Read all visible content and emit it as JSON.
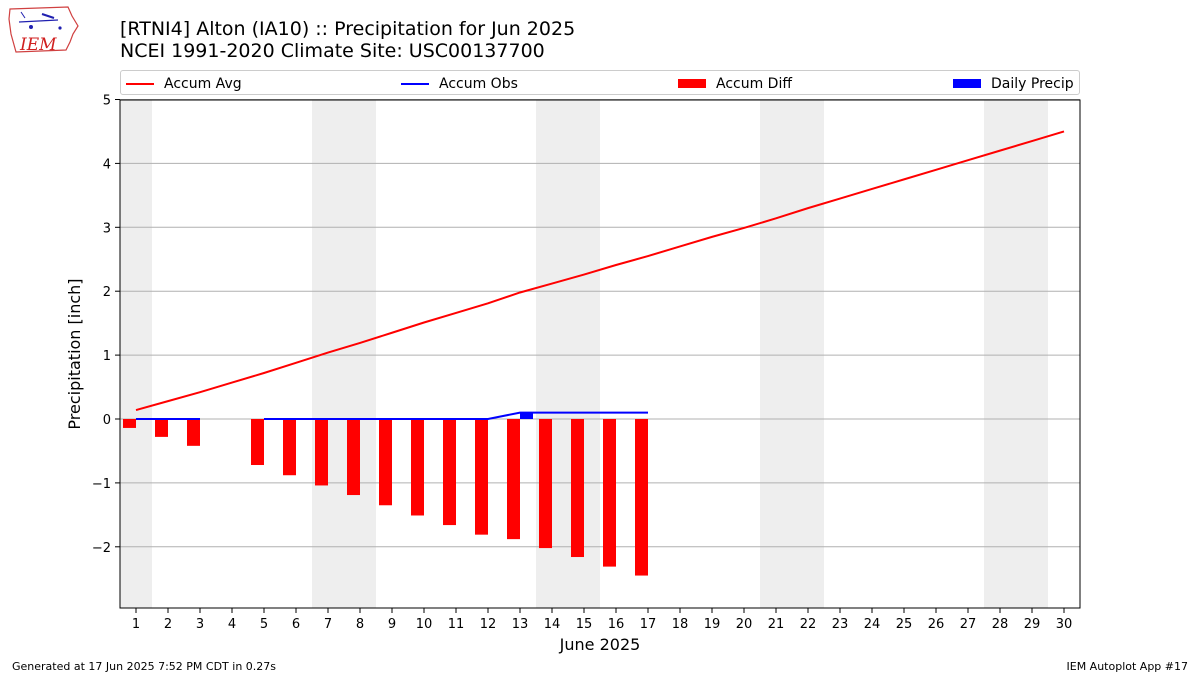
{
  "header": {
    "logo_text": "IEM",
    "title_line1": "[RTNI4] Alton (IA10) :: Precipitation for Jun 2025",
    "title_line2": "NCEI 1991-2020 Climate Site: USC00137700"
  },
  "legend": {
    "items": [
      {
        "label": "Accum Avg",
        "kind": "line",
        "color": "#ff0000"
      },
      {
        "label": "Accum Obs",
        "kind": "line",
        "color": "#0000ff"
      },
      {
        "label": "Accum Diff",
        "kind": "box",
        "color": "#ff0000"
      },
      {
        "label": "Daily Precip",
        "kind": "box",
        "color": "#0000ff"
      }
    ]
  },
  "chart_data": {
    "type": "bar",
    "xlabel": "June 2025",
    "ylabel": "Precipitation [inch]",
    "xlim": [
      1,
      30
    ],
    "ylim": [
      -2.95,
      5
    ],
    "yticks": [
      -2,
      -1,
      0,
      1,
      2,
      3,
      4,
      5
    ],
    "ytick_labels": [
      "−2",
      "−1",
      "0",
      "1",
      "2",
      "3",
      "4",
      "5"
    ],
    "x_ticks": [
      1,
      2,
      3,
      4,
      5,
      6,
      7,
      8,
      9,
      10,
      11,
      12,
      13,
      14,
      15,
      16,
      17,
      18,
      19,
      20,
      21,
      22,
      23,
      24,
      25,
      26,
      27,
      28,
      29,
      30
    ],
    "x_tick_labels": [
      "1",
      "2",
      "3",
      "4",
      "5",
      "6",
      "7",
      "8",
      "9",
      "10",
      "11",
      "12",
      "13",
      "14",
      "15",
      "16",
      "17",
      "18",
      "19",
      "20",
      "21",
      "22",
      "23",
      "24",
      "25",
      "26",
      "27",
      "28",
      "29",
      "30"
    ],
    "grid": "y",
    "weekend_shading": [
      [
        1,
        1
      ],
      [
        7,
        8
      ],
      [
        14,
        15
      ],
      [
        21,
        22
      ],
      [
        28,
        29
      ]
    ],
    "series": [
      {
        "name": "Accum Avg",
        "type": "line",
        "color": "#ff0000",
        "x": [
          1,
          2,
          3,
          4,
          5,
          6,
          7,
          8,
          9,
          10,
          11,
          12,
          13,
          14,
          15,
          16,
          17,
          18,
          19,
          20,
          21,
          22,
          23,
          24,
          25,
          26,
          27,
          28,
          29,
          30
        ],
        "values": [
          0.14,
          0.28,
          0.42,
          0.57,
          0.72,
          0.88,
          1.04,
          1.19,
          1.35,
          1.51,
          1.66,
          1.81,
          1.98,
          2.12,
          2.26,
          2.41,
          2.55,
          2.7,
          2.85,
          2.99,
          3.14,
          3.3,
          3.45,
          3.6,
          3.75,
          3.9,
          4.05,
          4.2,
          4.35,
          4.5
        ]
      },
      {
        "name": "Accum Obs",
        "type": "line",
        "color": "#0000ff",
        "segments": [
          {
            "x": [
              1,
              2,
              3
            ],
            "values": [
              0,
              0,
              0
            ]
          },
          {
            "x": [
              5,
              6,
              7,
              8,
              9,
              10,
              11,
              12,
              13,
              14,
              15,
              16,
              17
            ],
            "values": [
              0,
              0,
              0,
              0,
              0,
              0,
              0,
              0,
              0.1,
              0.1,
              0.1,
              0.1,
              0.1
            ]
          }
        ]
      },
      {
        "name": "Accum Diff",
        "type": "bar",
        "color": "#ff0000",
        "x": [
          1,
          2,
          3,
          5,
          6,
          7,
          8,
          9,
          10,
          11,
          12,
          13,
          14,
          15,
          16,
          17
        ],
        "values": [
          -0.14,
          -0.28,
          -0.42,
          -0.72,
          -0.88,
          -1.04,
          -1.19,
          -1.35,
          -1.51,
          -1.66,
          -1.81,
          -1.88,
          -2.02,
          -2.16,
          -2.31,
          -2.45
        ]
      },
      {
        "name": "Daily Precip",
        "type": "bar",
        "color": "#0000ff",
        "x": [
          13
        ],
        "values": [
          0.1
        ]
      }
    ]
  },
  "footer": {
    "left": "Generated at 17 Jun 2025 7:52 PM CDT in 0.27s",
    "right": "IEM Autoplot App #17"
  }
}
